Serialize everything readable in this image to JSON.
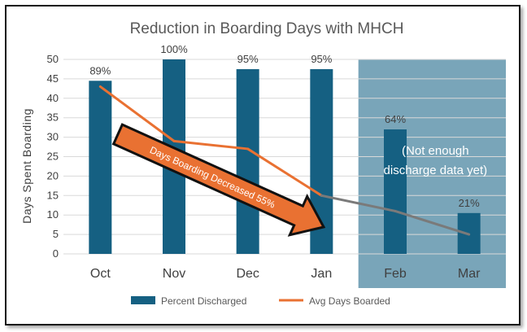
{
  "chart_data": {
    "type": "bar",
    "title": "Reduction in Boarding Days with MHCH",
    "ylabel": "Days  Spent  Boarding",
    "xlabel": "",
    "ylim": [
      0,
      50
    ],
    "yticks": [
      0,
      5,
      10,
      15,
      20,
      25,
      30,
      35,
      40,
      45,
      50
    ],
    "categories": [
      "Oct",
      "Nov",
      "Dec",
      "Jan",
      "Feb",
      "Mar"
    ],
    "grid": true,
    "legend_position": "bottom",
    "series": [
      {
        "name": "Percent Discharged",
        "type": "bar",
        "color": "#156082",
        "values": [
          44.5,
          50,
          47.5,
          47.5,
          32,
          10.5
        ],
        "data_labels": [
          "89%",
          "100%",
          "95%",
          "95%",
          "64%",
          "21%"
        ]
      },
      {
        "name": "Avg Days Boarded",
        "type": "line",
        "color": "#E97132",
        "values": [
          43,
          29,
          27,
          15,
          11,
          5
        ]
      }
    ],
    "annotations": {
      "arrow_text": "Days Boarding Decreased 55%",
      "note_line1": "(Not enough",
      "note_line2": "discharge data yet)",
      "highlight_categories": [
        "Feb",
        "Mar"
      ],
      "highlight_color": "#6E9DB3"
    }
  }
}
